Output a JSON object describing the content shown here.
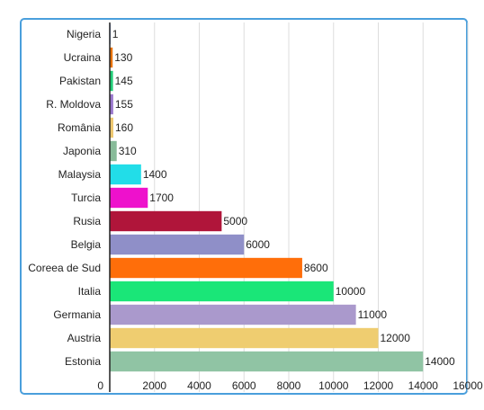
{
  "chart_data": {
    "type": "bar",
    "orientation": "horizontal",
    "categories": [
      "Nigeria",
      "Ucraina",
      "Pakistan",
      "R. Moldova",
      "România",
      "Japonia",
      "Malaysia",
      "Turcia",
      "Rusia",
      "Belgia",
      "Coreea de Sud",
      "Italia",
      "Germania",
      "Austria",
      "Estonia"
    ],
    "values": [
      1,
      130,
      145,
      155,
      160,
      310,
      1400,
      1700,
      5000,
      6000,
      8600,
      10000,
      11000,
      12000,
      14000
    ],
    "value_labels": [
      "1",
      "130",
      "145",
      "155",
      "160",
      "310",
      "1400",
      "1700",
      "5000",
      "6000",
      "8600",
      "10000",
      "11000",
      "12000",
      "14000"
    ],
    "colors": [
      "#3366cc",
      "#e8730c",
      "#22cc77",
      "#9977cc",
      "#eec870",
      "#88bb99",
      "#22dde8",
      "#ee11cc",
      "#b0153a",
      "#8f8fc8",
      "#ff6e0a",
      "#1ae678",
      "#aa99cc",
      "#efcd70",
      "#90c4a4"
    ],
    "x_ticks": [
      "0",
      "2000",
      "4000",
      "6000",
      "8000",
      "10000",
      "12000",
      "14000",
      "16000"
    ],
    "xlim": [
      0,
      16000
    ],
    "grid": true,
    "title": "",
    "xlabel": "",
    "ylabel": ""
  }
}
